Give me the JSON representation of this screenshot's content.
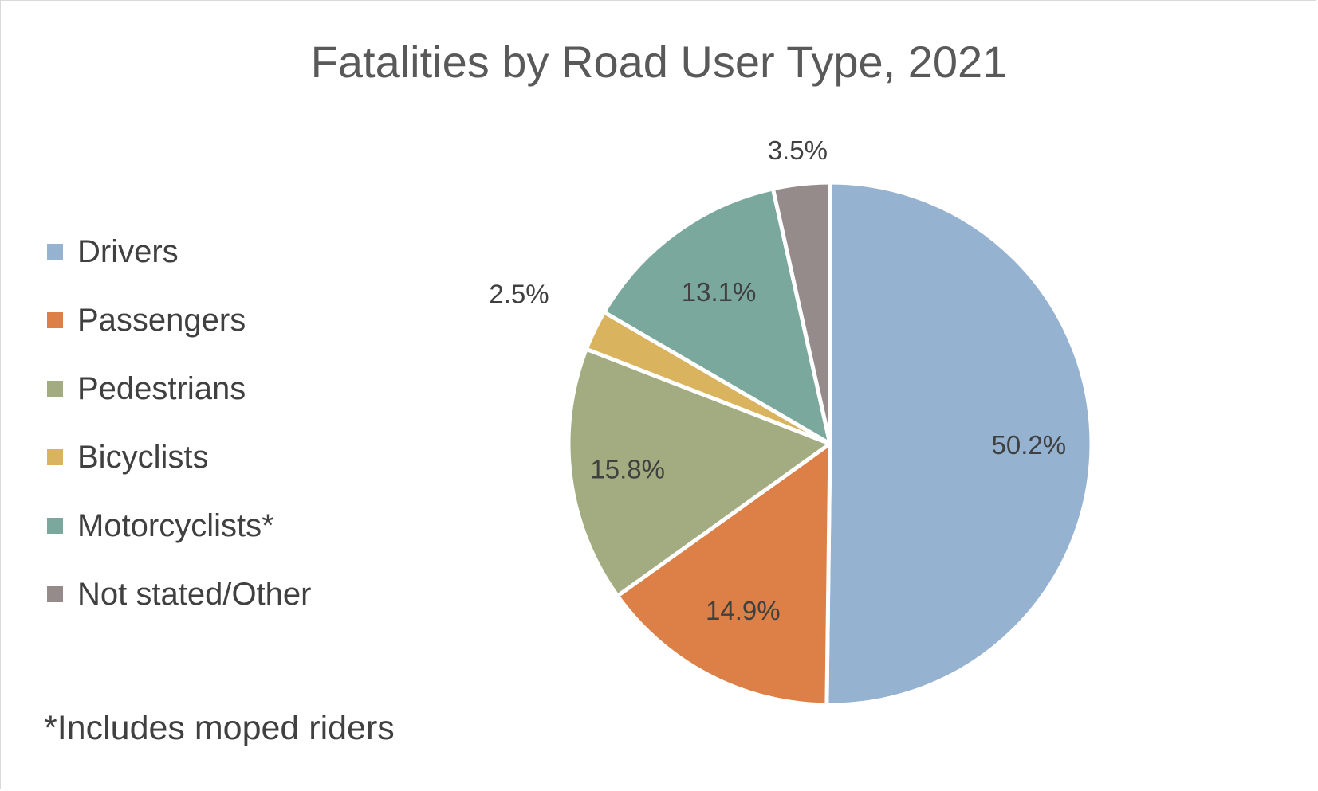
{
  "chart_data": {
    "type": "pie",
    "title": "Fatalities by Road User Type, 2021",
    "categories": [
      "Drivers",
      "Passengers",
      "Pedestrians",
      "Bicyclists",
      "Motorcyclists*",
      "Not stated/Other"
    ],
    "values": [
      50.2,
      14.9,
      15.8,
      2.5,
      13.1,
      3.5
    ],
    "value_labels": [
      "50.2%",
      "14.9%",
      "15.8%",
      "2.5%",
      "13.1%",
      "3.5%"
    ],
    "colors": [
      "#95b3d1",
      "#dc8048",
      "#a3ab80",
      "#d9b35d",
      "#7aa89c",
      "#958b8b"
    ],
    "legend_position": "left",
    "start_angle": "top",
    "direction": "clockwise",
    "footnote": "*Includes moped riders"
  }
}
